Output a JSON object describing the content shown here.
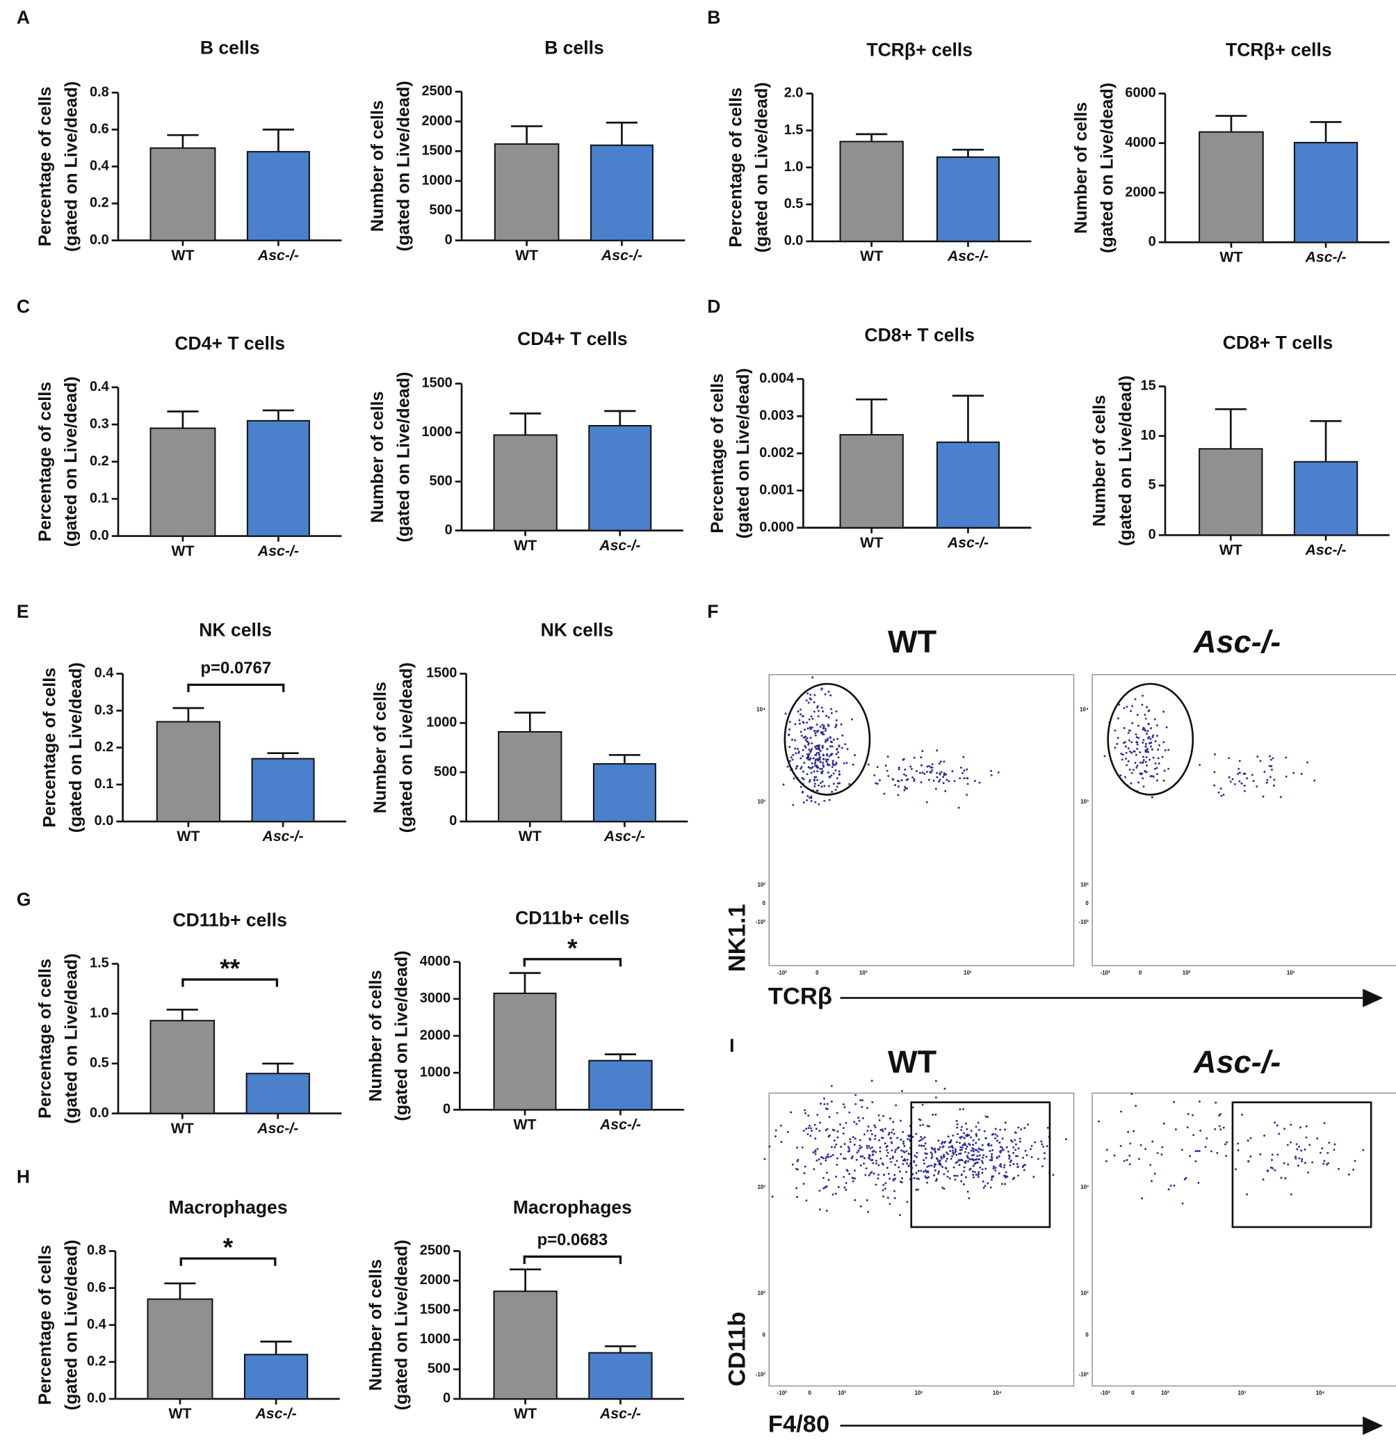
{
  "chart_data": [
    {
      "type": "bar",
      "panel": "A",
      "title": "B cells",
      "ylabel": [
        "Percentage of cells",
        "(gated on Live/dead)"
      ],
      "categories": [
        "WT",
        "Asc-/-"
      ],
      "values": [
        0.5,
        0.48
      ],
      "errors": [
        0.07,
        0.12
      ],
      "colors": [
        "#8e9091",
        "#4a80cc"
      ],
      "ylim": [
        0,
        0.8
      ],
      "yticks": [
        {
          "value": 0,
          "label": "0.0"
        },
        0.2,
        0.4,
        0.6,
        0.8
      ]
    },
    {
      "type": "bar",
      "title": "B cells",
      "ylabel": [
        "Number of cells",
        "(gated on Live/dead)"
      ],
      "categories": [
        "WT",
        "Asc-/-"
      ],
      "values": [
        1620,
        1600
      ],
      "errors": [
        300,
        380
      ],
      "colors": [
        "#8e9091",
        "#4a80cc"
      ],
      "ylim": [
        0,
        2500
      ],
      "yticks": [
        0,
        500,
        1000,
        1500,
        2000,
        2500
      ]
    },
    {
      "type": "bar",
      "panel": "B",
      "title": "TCRβ+ cells",
      "ylabel": [
        "Percentage of cells",
        "(gated on Live/dead)"
      ],
      "categories": [
        "WT",
        "Asc-/-"
      ],
      "values": [
        1.35,
        1.14
      ],
      "errors": [
        0.1,
        0.1
      ],
      "colors": [
        "#8e9091",
        "#4a80cc"
      ],
      "ylim": [
        0,
        2
      ],
      "yticks": [
        {
          "value": 0,
          "label": "0.0"
        },
        0.5,
        {
          "value": 1,
          "label": "1.0"
        },
        1.5,
        {
          "value": 2,
          "label": "2.0"
        }
      ]
    },
    {
      "type": "bar",
      "title": "TCRβ+ cells",
      "ylabel": [
        "Number of cells",
        "(gated on Live/dead)"
      ],
      "categories": [
        "WT",
        "Asc-/-"
      ],
      "values": [
        4450,
        4020
      ],
      "errors": [
        650,
        830
      ],
      "colors": [
        "#8e9091",
        "#4a80cc"
      ],
      "ylim": [
        0,
        6000
      ],
      "yticks": [
        0,
        2000,
        4000,
        6000
      ]
    },
    {
      "type": "bar",
      "panel": "C",
      "title": "CD4+ T cells",
      "ylabel": [
        "Percentage of cells",
        "(gated on Live/dead)"
      ],
      "categories": [
        "WT",
        "Asc-/-"
      ],
      "values": [
        0.29,
        0.31
      ],
      "errors": [
        0.045,
        0.028
      ],
      "colors": [
        "#8e9091",
        "#4a80cc"
      ],
      "ylim": [
        0,
        0.4
      ],
      "yticks": [
        {
          "value": 0,
          "label": "0.0"
        },
        0.1,
        0.2,
        0.3,
        0.4
      ]
    },
    {
      "type": "bar",
      "title": "CD4+ T cells",
      "ylabel": [
        "Number of cells",
        "(gated on Live/dead)"
      ],
      "categories": [
        "WT",
        "Asc-/-"
      ],
      "values": [
        975,
        1070
      ],
      "errors": [
        220,
        150
      ],
      "colors": [
        "#8e9091",
        "#4a80cc"
      ],
      "ylim": [
        0,
        1500
      ],
      "yticks": [
        0,
        500,
        1000,
        1500
      ]
    },
    {
      "type": "bar",
      "panel": "D",
      "title": "CD8+ T cells",
      "ylabel": [
        "Percentage of cells",
        "(gated on Live/dead)"
      ],
      "categories": [
        "WT",
        "Asc-/-"
      ],
      "values": [
        0.0025,
        0.0023
      ],
      "errors": [
        0.00095,
        0.00125
      ],
      "colors": [
        "#8e9091",
        "#4a80cc"
      ],
      "ylim": [
        0,
        0.004
      ],
      "yticks": [
        {
          "value": 0,
          "label": "0.000"
        },
        0.001,
        0.002,
        0.003,
        0.004
      ]
    },
    {
      "type": "bar",
      "title": "CD8+ T cells",
      "ylabel": [
        "Number of cells",
        "(gated on Live/dead)"
      ],
      "categories": [
        "WT",
        "Asc-/-"
      ],
      "values": [
        8.7,
        7.4
      ],
      "errors": [
        4.0,
        4.1
      ],
      "colors": [
        "#8e9091",
        "#4a80cc"
      ],
      "ylim": [
        0,
        15
      ],
      "yticks": [
        0,
        5,
        10,
        15
      ]
    },
    {
      "type": "bar",
      "panel": "E",
      "title": "NK cells",
      "ylabel": [
        "Percentage of cells",
        "(gated on Live/dead)"
      ],
      "categories": [
        "WT",
        "Asc-/-"
      ],
      "values": [
        0.27,
        0.17
      ],
      "errors": [
        0.037,
        0.015
      ],
      "colors": [
        "#8e9091",
        "#4a80cc"
      ],
      "ylim": [
        0,
        0.4
      ],
      "yticks": [
        {
          "value": 0,
          "label": "0.0"
        },
        0.1,
        0.2,
        0.3,
        0.4
      ],
      "annotation": "p=0.0767"
    },
    {
      "type": "bar",
      "title": "NK cells",
      "ylabel": [
        "Number of cells",
        "(gated on Live/dead)"
      ],
      "categories": [
        "WT",
        "Asc-/-"
      ],
      "values": [
        910,
        585
      ],
      "errors": [
        195,
        90
      ],
      "colors": [
        "#8e9091",
        "#4a80cc"
      ],
      "ylim": [
        0,
        1500
      ],
      "yticks": [
        0,
        500,
        1000,
        1500
      ]
    },
    {
      "type": "bar",
      "panel": "G",
      "title": "CD11b+ cells",
      "ylabel": [
        "Percentage of cells",
        "(gated on Live/dead)"
      ],
      "categories": [
        "WT",
        "Asc-/-"
      ],
      "values": [
        0.93,
        0.4
      ],
      "errors": [
        0.11,
        0.1
      ],
      "colors": [
        "#8e9091",
        "#4a80cc"
      ],
      "ylim": [
        0,
        1.5
      ],
      "yticks": [
        {
          "value": 0,
          "label": "0.0"
        },
        0.5,
        {
          "value": 1,
          "label": "1.0"
        },
        1.5
      ],
      "annotation": "**"
    },
    {
      "type": "bar",
      "title": "CD11b+ cells",
      "ylabel": [
        "Number of cells",
        "(gated on Live/dead)"
      ],
      "categories": [
        "WT",
        "Asc-/-"
      ],
      "values": [
        3150,
        1330
      ],
      "errors": [
        550,
        170
      ],
      "colors": [
        "#8e9091",
        "#4a80cc"
      ],
      "ylim": [
        0,
        4000
      ],
      "yticks": [
        0,
        1000,
        2000,
        3000,
        4000
      ],
      "annotation": "*"
    },
    {
      "type": "bar",
      "panel": "H",
      "title": "Macrophages",
      "ylabel": [
        "Percentage of cells",
        "(gated on Live/dead)"
      ],
      "categories": [
        "WT",
        "Asc-/-"
      ],
      "values": [
        0.54,
        0.24
      ],
      "errors": [
        0.085,
        0.07
      ],
      "colors": [
        "#8e9091",
        "#4a80cc"
      ],
      "ylim": [
        0,
        0.8
      ],
      "yticks": [
        {
          "value": 0,
          "label": "0.0"
        },
        0.2,
        0.4,
        0.6,
        0.8
      ],
      "annotation": "*"
    },
    {
      "type": "bar",
      "title": "Macrophages",
      "ylabel": [
        "Number of cells",
        "(gated on Live/dead)"
      ],
      "categories": [
        "WT",
        "Asc-/-"
      ],
      "values": [
        1820,
        780
      ],
      "errors": [
        370,
        110
      ],
      "colors": [
        "#8e9091",
        "#4a80cc"
      ],
      "ylim": [
        0,
        2500
      ],
      "yticks": [
        0,
        500,
        1000,
        1500,
        2000,
        2500
      ],
      "annotation": "p=0.0683"
    }
  ],
  "flow": [
    {
      "panel": "F",
      "ylabel": "NK1.1",
      "xlabel": "TCRβ",
      "plots": [
        "WT",
        "Asc-/-"
      ],
      "yticks": [
        "10⁴",
        "10³",
        "10²",
        "0",
        "-10²"
      ],
      "xticks": [
        "-10²",
        "0",
        "10²",
        "10³"
      ]
    },
    {
      "panel": "I",
      "ylabel": "CD11b",
      "xlabel": "F4/80",
      "plots": [
        "WT",
        "Asc-/-"
      ],
      "yticks": [
        "10³",
        "10²",
        "0",
        "-10²"
      ],
      "xticks": [
        "-10²",
        "0",
        "10²",
        "10³",
        "10⁴"
      ]
    }
  ]
}
